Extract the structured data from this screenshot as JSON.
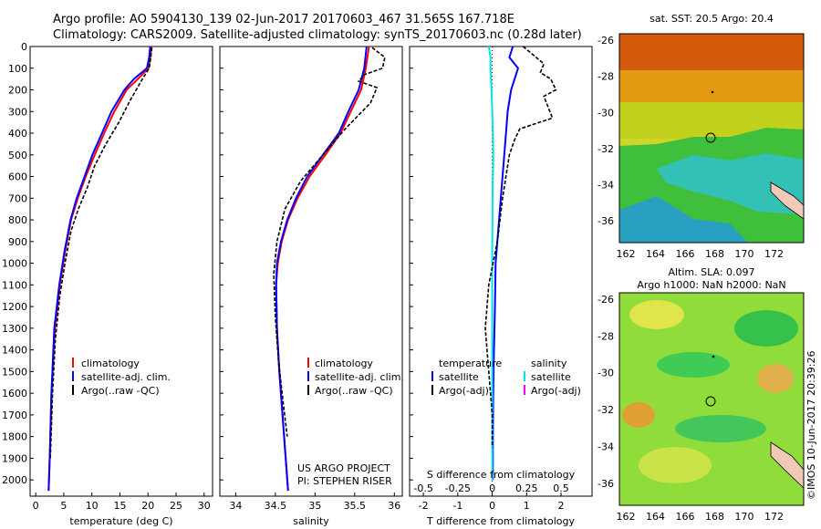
{
  "header": {
    "line1": "Argo profile: AO 5904130_139 02-Jun-2017 20170603_467 31.565S 167.718E",
    "line2": "Climatology: CARS2009. Satellite-adjusted climatology: synTS_20170603.nc (0.28d later)"
  },
  "colors": {
    "climatology": "#ff0000",
    "satellite": "#0000ff",
    "argo": "#000000",
    "sal_satellite": "#00e5e5",
    "sal_argo": "#ff00ff"
  },
  "chart_data": [
    {
      "type": "line",
      "panel": "temperature",
      "xlabel": "temperature (deg C)",
      "ylabel": "",
      "xlim": [
        -1,
        31.5
      ],
      "ylim": [
        2075,
        0
      ],
      "xticks": [
        0,
        5,
        10,
        15,
        20,
        25,
        30
      ],
      "yticks": [
        0,
        100,
        200,
        300,
        400,
        500,
        600,
        700,
        800,
        900,
        1000,
        1100,
        1200,
        1300,
        1400,
        1500,
        1600,
        1700,
        1800,
        1900,
        2000
      ],
      "legend": [
        "climatology",
        "satellite-adj. clim.",
        "Argo(..raw -QC)"
      ],
      "series": [
        {
          "name": "climatology",
          "color": "#ff0000",
          "x": [
            20.6,
            20.4,
            20.1,
            18.2,
            16.2,
            14.0,
            12.2,
            10.5,
            8.9,
            7.5,
            6.3,
            5.2,
            4.3,
            3.4,
            2.8,
            2.5,
            2.3
          ],
          "y": [
            0,
            50,
            100,
            150,
            200,
            300,
            400,
            500,
            600,
            700,
            800,
            950,
            1100,
            1300,
            1600,
            1900,
            2050
          ]
        },
        {
          "name": "satellite-adj. clim.",
          "color": "#0000ff",
          "x": [
            20.4,
            20.2,
            19.8,
            17.5,
            15.8,
            13.5,
            11.8,
            10.1,
            8.7,
            7.3,
            6.2,
            5.1,
            4.2,
            3.3,
            2.8,
            2.5,
            2.3
          ],
          "y": [
            0,
            50,
            100,
            150,
            200,
            300,
            400,
            500,
            600,
            700,
            800,
            950,
            1100,
            1300,
            1600,
            1900,
            2050
          ]
        },
        {
          "name": "Argo(..raw -QC)",
          "color": "#000000",
          "x": [
            20.7,
            20.5,
            20.2,
            19.0,
            17.9,
            16.8,
            14.8,
            12.5,
            10.5,
            9.2,
            7.6,
            6.3,
            5.2,
            4.3,
            3.5,
            3.0,
            2.6
          ],
          "y": [
            5,
            50,
            100,
            150,
            200,
            250,
            350,
            450,
            550,
            650,
            750,
            850,
            1000,
            1150,
            1350,
            1600,
            1900
          ]
        }
      ]
    },
    {
      "type": "line",
      "panel": "salinity",
      "xlabel": "salinity",
      "xlim": [
        33.8,
        36.1
      ],
      "ylim": [
        2075,
        0
      ],
      "xticks": [
        34,
        34.5,
        35,
        35.5,
        36
      ],
      "legend": [
        "climatology",
        "satellite-adj. clim.",
        "Argo(..raw -QC)"
      ],
      "series": [
        {
          "name": "climatology",
          "color": "#ff0000",
          "x": [
            35.68,
            35.64,
            35.58,
            35.45,
            35.32,
            35.13,
            34.93,
            34.78,
            34.66,
            34.58,
            34.53,
            34.51,
            34.52,
            34.55,
            34.59,
            34.63,
            34.66
          ],
          "y": [
            0,
            100,
            200,
            300,
            400,
            500,
            600,
            700,
            800,
            900,
            1000,
            1100,
            1300,
            1500,
            1700,
            1900,
            2050
          ]
        },
        {
          "name": "satellite-adj. clim.",
          "color": "#0000ff",
          "x": [
            35.65,
            35.62,
            35.55,
            35.42,
            35.3,
            35.1,
            34.9,
            34.76,
            34.65,
            34.57,
            34.52,
            34.51,
            34.52,
            34.55,
            34.59,
            34.63,
            34.66
          ],
          "y": [
            0,
            100,
            200,
            300,
            400,
            500,
            600,
            700,
            800,
            900,
            1000,
            1100,
            1300,
            1500,
            1700,
            1900,
            2050
          ]
        },
        {
          "name": "Argo(..raw -QC)",
          "color": "#000000",
          "x": [
            35.72,
            35.88,
            35.85,
            35.62,
            35.55,
            35.78,
            35.7,
            35.38,
            35.1,
            34.82,
            34.62,
            34.52,
            34.48,
            34.5,
            34.54,
            34.6,
            34.65
          ],
          "y": [
            5,
            50,
            100,
            130,
            160,
            190,
            260,
            380,
            500,
            620,
            750,
            900,
            1050,
            1250,
            1450,
            1650,
            1800
          ]
        }
      ]
    },
    {
      "type": "line",
      "panel": "difference",
      "xlabel": "T difference from climatology",
      "xlabel_top": "S difference from climatology",
      "xlim": [
        -2.4,
        2.9
      ],
      "ylim": [
        2075,
        0
      ],
      "xticks": [
        -2,
        -1,
        0,
        1,
        2
      ],
      "xticks_s_labels": [
        "-0.5",
        "-0.25",
        "0",
        "0.25",
        "0.5"
      ],
      "legend_temperature": [
        "temperature",
        "satellite",
        "Argo(-adj)"
      ],
      "legend_salinity": [
        "salinity",
        "satellite",
        "Argo(-adj)"
      ],
      "series": [
        {
          "name": "satellite",
          "color": "#0000ff",
          "x": [
            0.6,
            0.5,
            0.75,
            0.55,
            0.45,
            0.4,
            0.35,
            0.3,
            0.25,
            0.2,
            0.15,
            0.1,
            0.08,
            0.05,
            0.03,
            0.02,
            0.02
          ],
          "y": [
            0,
            50,
            100,
            200,
            300,
            400,
            500,
            600,
            700,
            800,
            900,
            1000,
            1200,
            1400,
            1600,
            1800,
            2000
          ]
        },
        {
          "name": "satellite",
          "color": "#00e5e5",
          "x": [
            -0.1,
            -0.05,
            -0.05,
            -0.02,
            0.0,
            0.02,
            0.03,
            0.02,
            0.01,
            0.01,
            0.0,
            0.0,
            0.0,
            0.0,
            0.0,
            0.0,
            0.0
          ],
          "y": [
            0,
            50,
            100,
            200,
            300,
            400,
            500,
            600,
            700,
            800,
            900,
            1000,
            1200,
            1400,
            1600,
            1800,
            2000
          ]
        },
        {
          "name": "Argo(-adj)",
          "color": "#000000",
          "x": [
            0.9,
            1.5,
            1.4,
            1.7,
            1.85,
            1.5,
            1.75,
            0.8,
            0.65,
            0.5,
            0.3,
            0.15,
            -0.1,
            -0.2,
            -0.1,
            0.0,
            0.0
          ],
          "y": [
            0,
            80,
            120,
            150,
            200,
            230,
            330,
            380,
            430,
            500,
            700,
            900,
            1100,
            1300,
            1500,
            1700,
            1850
          ]
        }
      ]
    }
  ],
  "side_text": {
    "project": "US ARGO PROJECT",
    "pi": "PI: STEPHEN RISER",
    "stamp": "©IMOS 10-Jun-2017 20:39:26"
  },
  "maps": {
    "top_title": "sat. SST: 20.5 Argo: 20.4",
    "bottom_title_1": "Altim. SLA: 0.097",
    "bottom_title_2": "Argo h1000: NaN h2000: NaN",
    "lon_ticks": [
      "162",
      "164",
      "166",
      "168",
      "170",
      "172"
    ],
    "lat_ticks": [
      "-26",
      "-28",
      "-30",
      "-32",
      "-34",
      "-36"
    ]
  }
}
